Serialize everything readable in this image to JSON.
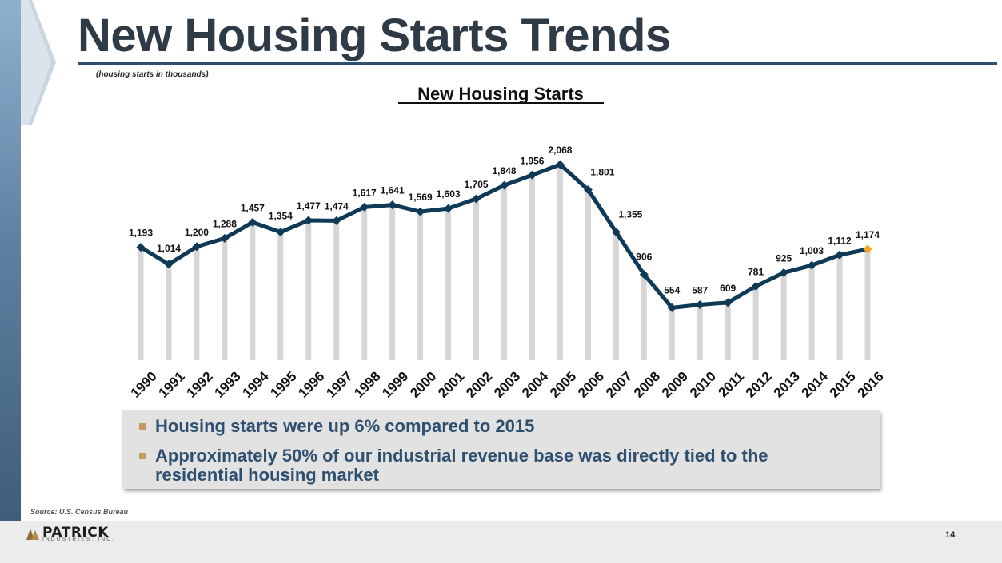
{
  "slide": {
    "title": "New Housing Starts Trends",
    "units_note": "(housing starts in thousands)",
    "source": "Source: U.S. Census Bureau",
    "page_number": "14",
    "logo": {
      "name": "PATRICK",
      "subtitle": "INDUSTRIES, INC."
    }
  },
  "bullets": [
    "Housing starts were up 6% compared to 2015",
    "Approximately 50% of our industrial revenue base was directly tied to the residential housing market"
  ],
  "colors": {
    "line": "#0e3a57",
    "bars": "#d6d6d6",
    "highlight_point": "#f5a623",
    "title": "#2e3a46",
    "bullet_text": "#2f4f6e",
    "bullet_marker": "#c59a63"
  },
  "chart_data": {
    "type": "line",
    "title": "New Housing Starts",
    "xlabel": "",
    "ylabel": "",
    "ylim": [
      0,
      2068
    ],
    "grid": false,
    "categories": [
      "1990",
      "1991",
      "1992",
      "1993",
      "1994",
      "1995",
      "1996",
      "1997",
      "1998",
      "1999",
      "2000",
      "2001",
      "2002",
      "2003",
      "2004",
      "2005",
      "2006",
      "2007",
      "2008",
      "2009",
      "2010",
      "2011",
      "2012",
      "2013",
      "2014",
      "2015",
      "2016"
    ],
    "series": [
      {
        "name": "Housing Starts (thousands)",
        "values": [
          1193,
          1014,
          1200,
          1288,
          1457,
          1354,
          1477,
          1474,
          1617,
          1641,
          1569,
          1603,
          1705,
          1848,
          1956,
          2068,
          1801,
          1355,
          906,
          554,
          587,
          609,
          781,
          925,
          1003,
          1112,
          1174
        ],
        "data_labels": [
          "1,193",
          "1,014",
          "1,200",
          "1,288",
          "1,457",
          "1,354",
          "1,477",
          "1,474",
          "1,617",
          "1,641",
          "1,569",
          "1,603",
          "1,705",
          "1,848",
          "1,956",
          "2,068",
          "1,801",
          "1,355",
          "906",
          "554",
          "587",
          "609",
          "781",
          "925",
          "1,003",
          "1,112",
          "1,174"
        ]
      }
    ]
  }
}
